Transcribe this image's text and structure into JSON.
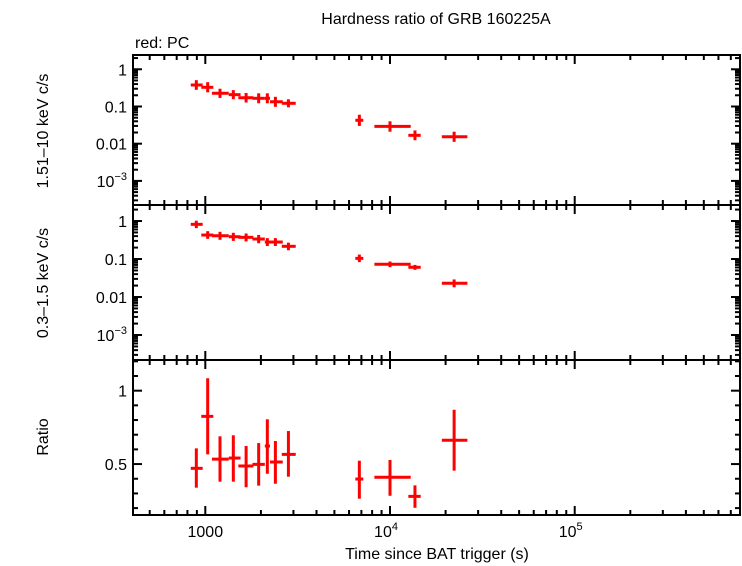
{
  "chart_data": {
    "type": "scatter",
    "title": "Hardness ratio of GRB 160225A",
    "legend_note": "red: PC",
    "xlabel": "Time since BAT trigger (s)",
    "xscale": "log",
    "xlim": [
      406,
      785000
    ],
    "x_ticks": [
      {
        "value": 1000,
        "label": "1000"
      },
      {
        "value": 10000,
        "base": "10",
        "exp": "4"
      },
      {
        "value": 100000,
        "base": "10",
        "exp": "5"
      }
    ],
    "color": "#ff0000",
    "x": [
      894,
      1030,
      1201,
      1418,
      1663,
      1945,
      2167,
      2396,
      2818,
      6823,
      10000,
      13650,
      22240
    ],
    "x_lo": [
      834,
      951,
      1086,
      1339,
      1509,
      1800,
      2100,
      2240,
      2594,
      6490,
      8230,
      12570,
      19080
    ],
    "x_hi": [
      968,
      1105,
      1339,
      1552,
      1820,
      2100,
      2240,
      2626,
      3087,
      7170,
      12940,
      14660,
      26240
    ],
    "panels": [
      {
        "ylabel": "1.51–10 keV c/s",
        "yscale": "log",
        "ylim": [
          0.000225,
          2.42
        ],
        "y_ticks": [
          {
            "value": 1,
            "label": "1"
          },
          {
            "value": 0.1,
            "label": "0.1"
          },
          {
            "value": 0.01,
            "label": "0.01"
          },
          {
            "value": 0.001,
            "base": "10",
            "exp": "−3"
          }
        ],
        "y": [
          0.378,
          0.328,
          0.226,
          0.208,
          0.172,
          0.166,
          0.166,
          0.134,
          0.122,
          0.0426,
          0.0292,
          0.0168,
          0.0154
        ],
        "y_lo": [
          0.28,
          0.24,
          0.17,
          0.157,
          0.128,
          0.122,
          0.122,
          0.098,
          0.095,
          0.03,
          0.021,
          0.0124,
          0.0112
        ],
        "y_hi": [
          0.51,
          0.45,
          0.3,
          0.275,
          0.23,
          0.226,
          0.226,
          0.182,
          0.156,
          0.06,
          0.04,
          0.0227,
          0.021
        ]
      },
      {
        "ylabel": "0.3–1.5 keV c/s",
        "yscale": "log",
        "ylim": [
          0.00022,
          2.64
        ],
        "y_ticks": [
          {
            "value": 1,
            "label": "1"
          },
          {
            "value": 0.1,
            "label": "0.1"
          },
          {
            "value": 0.01,
            "label": "0.01"
          },
          {
            "value": 0.001,
            "base": "10",
            "exp": "−3"
          }
        ],
        "y": [
          0.818,
          0.428,
          0.41,
          0.386,
          0.372,
          0.336,
          0.28,
          0.28,
          0.216,
          0.104,
          0.0726,
          0.0606,
          0.0231
        ],
        "y_lo": [
          0.65,
          0.34,
          0.32,
          0.3,
          0.29,
          0.26,
          0.22,
          0.22,
          0.17,
          0.083,
          0.061,
          0.052,
          0.018
        ],
        "y_hi": [
          1.02,
          0.54,
          0.52,
          0.49,
          0.47,
          0.43,
          0.355,
          0.355,
          0.27,
          0.131,
          0.086,
          0.07,
          0.029
        ]
      },
      {
        "ylabel": "Ratio",
        "yscale": "linear",
        "ylim": [
          0.153,
          1.209
        ],
        "y_ticks": [
          {
            "value": 1,
            "label": "1"
          },
          {
            "value": 0.5,
            "label": "0.5"
          }
        ],
        "y": [
          0.471,
          0.825,
          0.534,
          0.541,
          0.487,
          0.498,
          0.623,
          0.514,
          0.566,
          0.398,
          0.41,
          0.28,
          0.662
        ],
        "y_lo": [
          0.339,
          0.566,
          0.38,
          0.38,
          0.342,
          0.353,
          0.434,
          0.366,
          0.414,
          0.264,
          0.284,
          0.202,
          0.455
        ],
        "y_hi": [
          0.607,
          1.085,
          0.689,
          0.696,
          0.623,
          0.643,
          0.805,
          0.657,
          0.725,
          0.523,
          0.528,
          0.355,
          0.87
        ]
      }
    ]
  }
}
